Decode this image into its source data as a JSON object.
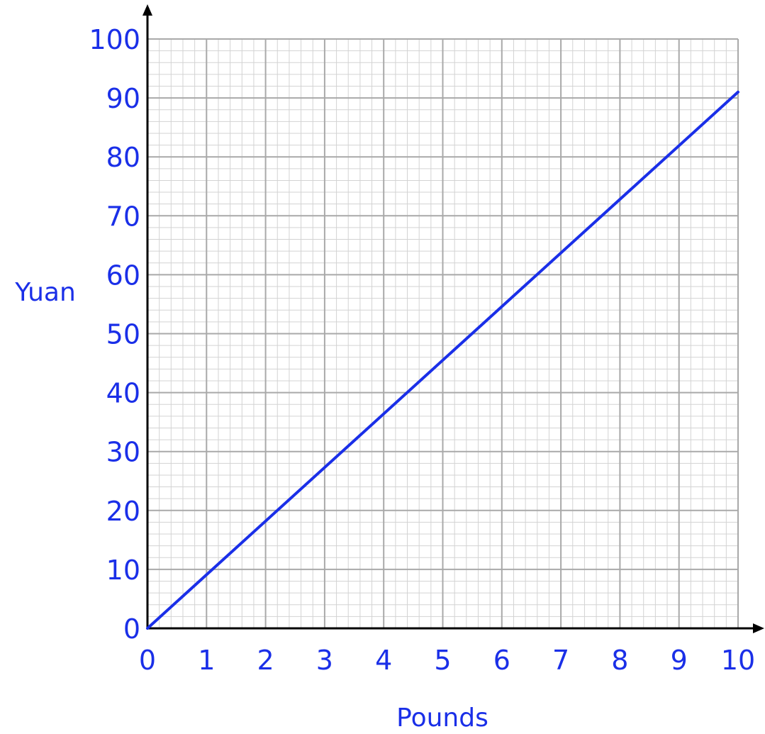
{
  "chart_data": {
    "type": "line",
    "xlabel": "Pounds",
    "ylabel": "Yuan",
    "xlim": [
      0,
      10
    ],
    "ylim": [
      0,
      100
    ],
    "x_ticks": [
      "0",
      "1",
      "2",
      "3",
      "4",
      "5",
      "6",
      "7",
      "8",
      "9",
      "10"
    ],
    "y_ticks": [
      "0",
      "10",
      "20",
      "30",
      "40",
      "50",
      "60",
      "70",
      "80",
      "90",
      "100"
    ],
    "grid": true,
    "minor_grid_per_unit": 5,
    "series": [
      {
        "x": [
          0,
          10
        ],
        "y": [
          0,
          91
        ]
      }
    ],
    "colors": {
      "text": "#1a2fe8",
      "line": "#1a2fe8",
      "axis": "#000000",
      "major_grid": "#a9a9a9",
      "minor_grid": "#d3d3d3"
    }
  }
}
